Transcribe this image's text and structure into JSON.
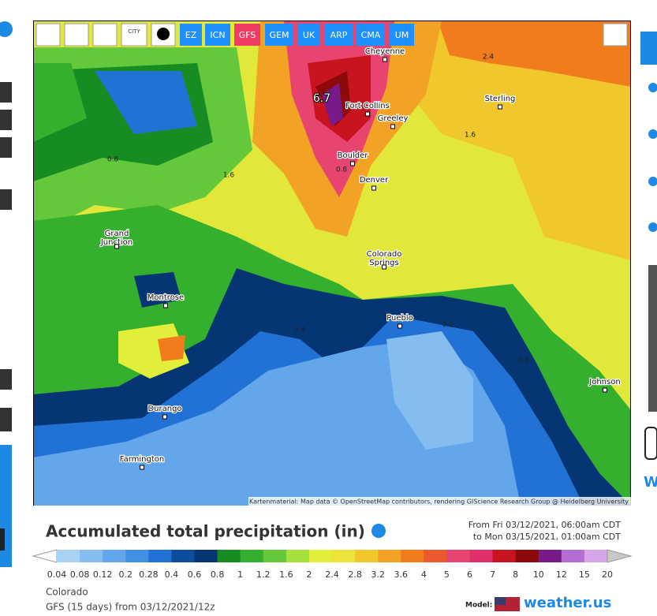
{
  "toolbar": {
    "city_button": "CITY",
    "models": [
      "EZ",
      "ICN",
      "GFS",
      "GEM",
      "UK",
      "ARP",
      "CMA",
      "UM"
    ],
    "active_model": "GFS"
  },
  "map": {
    "cities": [
      "Cheyenne",
      "Fort Collins",
      "Greeley",
      "Sterling",
      "Boulder",
      "Denver",
      "Grand\nJunction",
      "Colorado\nSprings",
      "Montrose",
      "Pueblo",
      "Johnson",
      "Durango",
      "Farmington"
    ],
    "contour_labels": [
      "2.4",
      "1.6",
      "0.8",
      "1.6",
      "0.8",
      "0.4",
      "0.2",
      "0.8"
    ],
    "max_label": "6.7",
    "attribution": "Kartenmaterial: Map data © OpenStreetMap contributors, rendering GIScience Research Group @ Heidelberg University"
  },
  "legend": {
    "title": "Accumulated total precipitation (in)",
    "period_from": "From Fri 03/12/2021, 06:00am CDT",
    "period_to": "to Mon 03/15/2021, 01:00am CDT",
    "scale_labels": [
      "0.04",
      "0.08",
      "0.12",
      "0.2",
      "0.28",
      "0.4",
      "0.6",
      "0.8",
      "1",
      "1.2",
      "1.6",
      "2",
      "2.4",
      "2.8",
      "3.2",
      "3.6",
      "4",
      "5",
      "6",
      "7",
      "8",
      "10",
      "12",
      "15",
      "20"
    ],
    "scale_colors": [
      "#ffffff",
      "#a9d3f5",
      "#86bdf0",
      "#63a6ea",
      "#418fe2",
      "#2272d6",
      "#0d4d9c",
      "#053673",
      "#178c22",
      "#35b02e",
      "#64c83a",
      "#a6e03c",
      "#e2ef3a",
      "#ece43a",
      "#f0c82e",
      "#f2a224",
      "#f07c1e",
      "#ea5a2e",
      "#e84470",
      "#e0306c",
      "#c8141e",
      "#8c0a0a",
      "#781a8a",
      "#b46ed2",
      "#d7a6e8",
      "#f0d4f4",
      "#c8c8c8"
    ]
  },
  "footer": {
    "region": "Colorado",
    "run": "GFS (15 days) from 03/12/2021/12z",
    "model_label": "Model:",
    "brand": "weather.us"
  },
  "side": {
    "right_link": "W"
  }
}
